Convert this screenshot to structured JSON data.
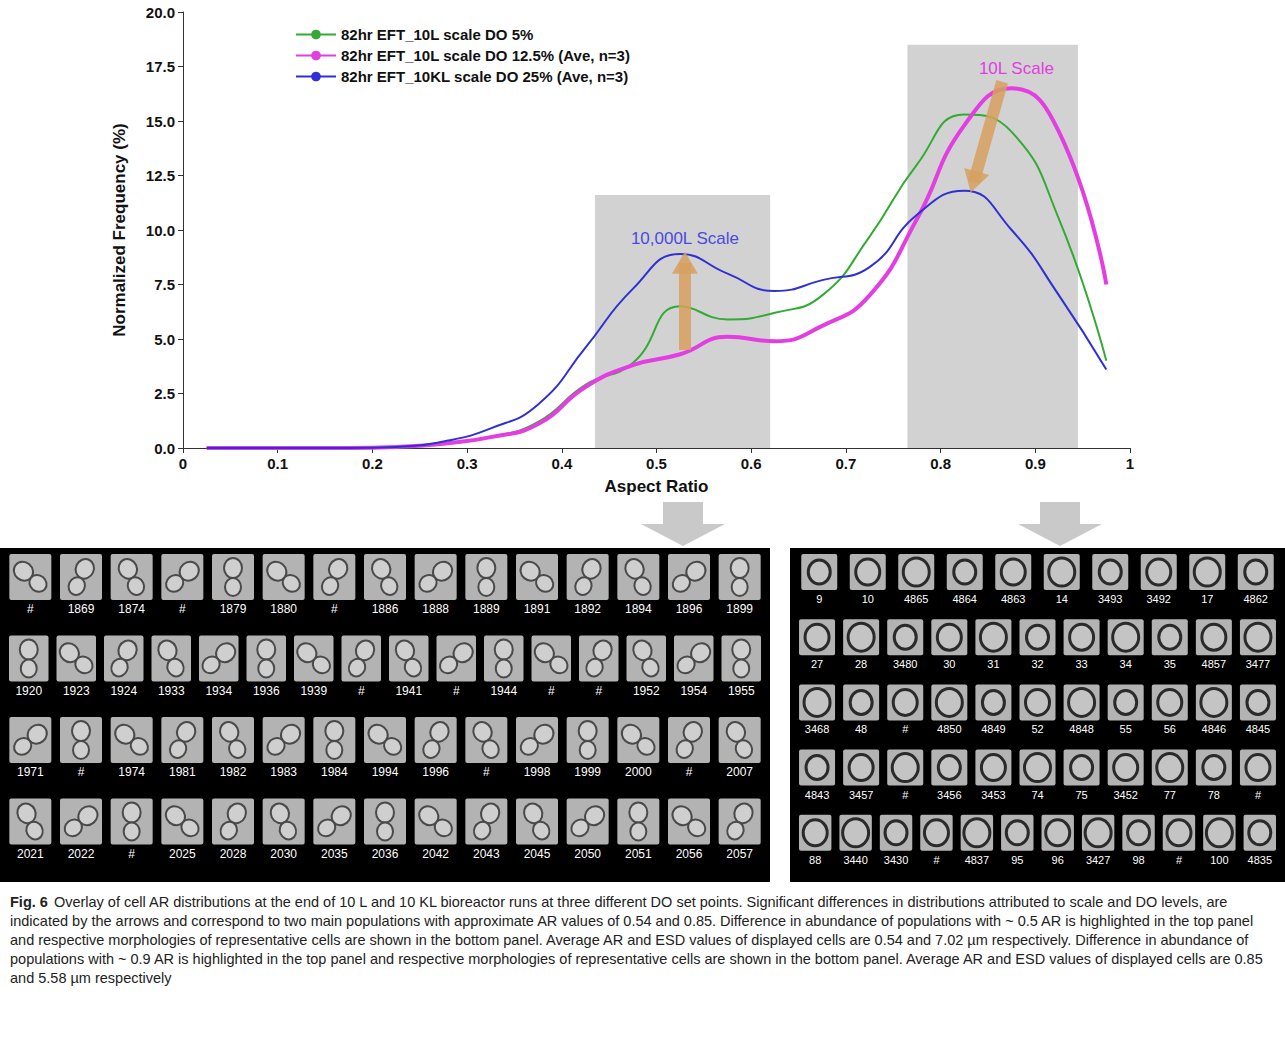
{
  "chart_data": {
    "type": "line",
    "xlabel": "Aspect Ratio",
    "ylabel": "Normalized Frequency (%)",
    "x": [
      0.025,
      0.075,
      0.125,
      0.175,
      0.225,
      0.275,
      0.325,
      0.375,
      0.425,
      0.475,
      0.525,
      0.575,
      0.625,
      0.675,
      0.725,
      0.775,
      0.825,
      0.875,
      0.925,
      0.975
    ],
    "series": [
      {
        "name": "82hr EFT_10L scale DO 5%",
        "color": "#33aa33",
        "values": [
          0,
          0,
          0,
          0,
          0.05,
          0.2,
          0.5,
          1.2,
          2.9,
          3.9,
          6.5,
          5.9,
          6.2,
          7.0,
          9.7,
          13.0,
          15.3,
          14.5,
          10.5,
          4.0
        ]
      },
      {
        "name": "82hr EFT_10L scale DO 12.5% (Ave, n=3)",
        "color": "#e23ee2",
        "values": [
          0,
          0,
          0,
          0,
          0.05,
          0.2,
          0.5,
          1.1,
          2.8,
          3.8,
          4.3,
          5.1,
          4.9,
          5.6,
          7.0,
          10.5,
          14.8,
          16.5,
          14.5,
          7.5
        ]
      },
      {
        "name": "82hr EFT_10KL scale DO 25% (Ave, n=3)",
        "color": "#2f2fd6",
        "values": [
          0,
          0,
          0,
          0,
          0.05,
          0.3,
          0.9,
          2.0,
          4.6,
          7.3,
          8.9,
          8.0,
          7.2,
          7.7,
          8.3,
          10.7,
          11.8,
          10.0,
          7.0,
          3.6
        ]
      }
    ],
    "xlim": [
      0,
      1
    ],
    "xticks": [
      0,
      0.1,
      0.2,
      0.3,
      0.4,
      0.5,
      0.6,
      0.7,
      0.8,
      0.9,
      1
    ],
    "ylim": [
      0,
      20
    ],
    "yticks": [
      {
        "value": 0,
        "label": "0.0"
      },
      {
        "value": 2.5,
        "label": "2.5"
      },
      {
        "value": 5,
        "label": "5.0"
      },
      {
        "value": 7.5,
        "label": "7.5"
      },
      {
        "value": 10,
        "label": "10.0"
      },
      {
        "value": 12.5,
        "label": "12.5"
      },
      {
        "value": 15,
        "label": "15.0"
      },
      {
        "value": 17.5,
        "label": "17.5"
      },
      {
        "value": 20,
        "label": "20.0"
      }
    ],
    "grid": false,
    "legend": "upper left",
    "highlights": [
      {
        "x": [
          0.435,
          0.62
        ],
        "y": [
          0,
          11.6
        ]
      },
      {
        "x": [
          0.765,
          0.945
        ],
        "y": [
          0,
          18.5
        ]
      }
    ],
    "arrows": [
      {
        "from": [
          0.53,
          4.5
        ],
        "to": [
          0.53,
          8.5
        ]
      },
      {
        "from": [
          0.865,
          16.8
        ],
        "to": [
          0.835,
          12.2
        ]
      }
    ],
    "annotations": [
      {
        "text": "10,000L Scale",
        "x": 0.53,
        "y": 9.6,
        "color": "#4a4ae0"
      },
      {
        "text": "10L Scale",
        "x": 0.88,
        "y": 17.4,
        "color": "#e040e0"
      }
    ]
  },
  "panels": [
    {
      "rows": [
        [
          "#",
          "1869",
          "1874",
          "#",
          "1879",
          "1880",
          "#",
          "1886",
          "1888",
          "1889",
          "1891",
          "1892",
          "1894",
          "1896",
          "1899"
        ],
        [
          "1920",
          "1923",
          "1924",
          "1933",
          "1934",
          "1936",
          "1939",
          "#",
          "1941",
          "#",
          "1944",
          "#",
          "#",
          "1952",
          "1954",
          "1955"
        ],
        [
          "1971",
          "#",
          "1974",
          "1981",
          "1982",
          "1983",
          "1984",
          "1994",
          "1996",
          "#",
          "1998",
          "1999",
          "2000",
          "#",
          "2007"
        ],
        [
          "2021",
          "2022",
          "#",
          "2025",
          "2028",
          "2030",
          "2035",
          "2036",
          "2042",
          "2043",
          "2045",
          "2050",
          "2051",
          "2056",
          "2057"
        ]
      ]
    },
    {
      "rows": [
        [
          "9",
          "10",
          "4865",
          "4864",
          "4863",
          "14",
          "3493",
          "3492",
          "17",
          "4862"
        ],
        [
          "27",
          "28",
          "3480",
          "30",
          "31",
          "32",
          "33",
          "34",
          "35",
          "4857",
          "3477"
        ],
        [
          "3468",
          "48",
          "#",
          "4850",
          "4849",
          "52",
          "4848",
          "55",
          "56",
          "4846",
          "4845"
        ],
        [
          "4843",
          "3457",
          "#",
          "3456",
          "3453",
          "74",
          "75",
          "3452",
          "77",
          "78",
          "#"
        ],
        [
          "88",
          "3440",
          "3430",
          "#",
          "4837",
          "95",
          "96",
          "3427",
          "98",
          "#",
          "100",
          "4835"
        ]
      ]
    }
  ],
  "caption": {
    "label": "Fig. 6",
    "text": "Overlay of cell AR distributions at the end of 10 L and 10 KL bioreactor runs at three different DO set points. Significant differences in distributions attributed to scale and DO levels, are indicated by the arrows and correspond to two main populations with approximate AR values of 0.54 and 0.85. Difference in abundance of populations with ~ 0.5 AR is highlighted in the top panel and respective morphologies of representative cells are shown in the bottom panel. Average AR and ESD values of displayed cells are 0.54 and 7.02 µm respectively. Difference in abundance of populations with ~ 0.9 AR is highlighted in the top panel and respective morphologies of representative cells are shown in the bottom panel. Average AR and ESD values of displayed cells are 0.85 and 5.58 µm respectively"
  }
}
